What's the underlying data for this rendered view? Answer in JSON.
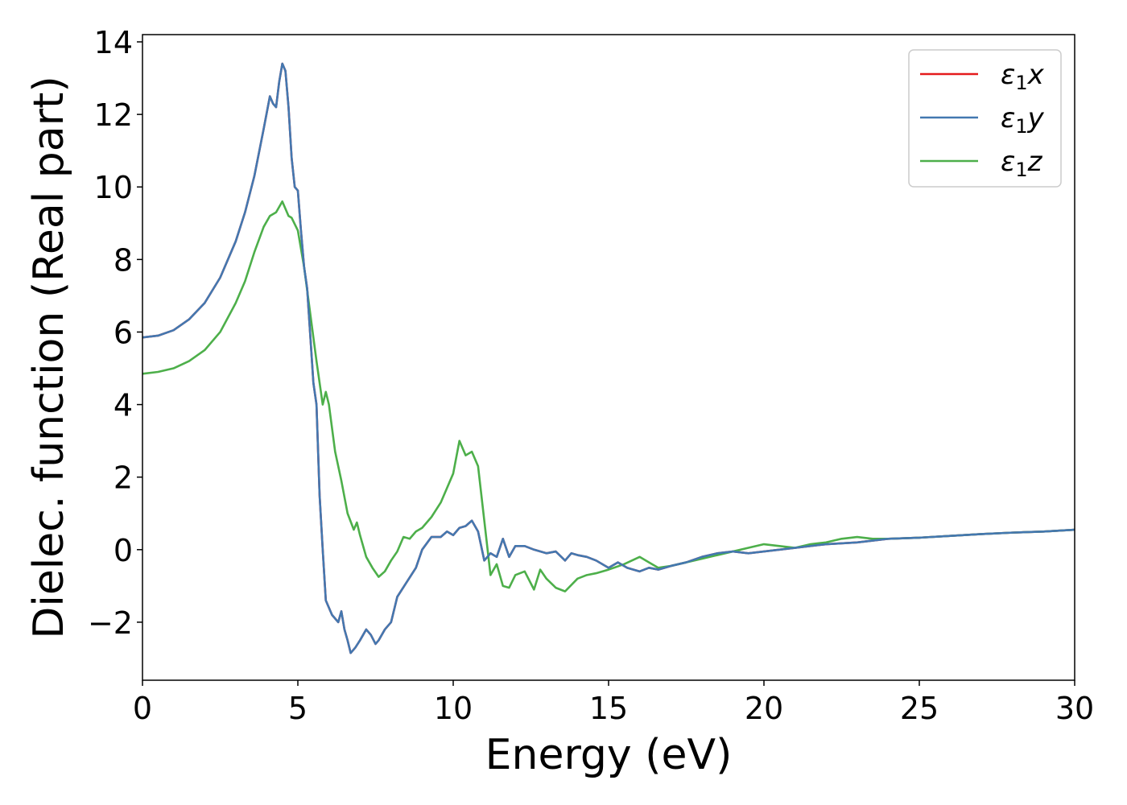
{
  "chart_data": {
    "type": "line",
    "title": "",
    "xlabel": "Energy (eV)",
    "ylabel": "Dielec. function (Real part)",
    "xlim": [
      0,
      30
    ],
    "ylim": [
      -3.6,
      14.2
    ],
    "xticks": [
      0,
      5,
      10,
      15,
      20,
      25,
      30
    ],
    "xtick_labels": [
      "0",
      "5",
      "10",
      "15",
      "20",
      "25",
      "30"
    ],
    "yticks": [
      -2,
      0,
      2,
      4,
      6,
      8,
      10,
      12,
      14
    ],
    "ytick_labels": [
      "−2",
      "0",
      "2",
      "4",
      "6",
      "8",
      "10",
      "12",
      "14"
    ],
    "grid": false,
    "legend_position": "top-right",
    "series": [
      {
        "name": "ε₁x",
        "legend_base": "ε",
        "legend_sub": "1",
        "legend_suffix": "x",
        "color": "#e41a1c",
        "x": [
          0,
          0.5,
          1,
          1.5,
          2,
          2.5,
          3,
          3.3,
          3.6,
          3.9,
          4.1,
          4.2,
          4.3,
          4.4,
          4.5,
          4.6,
          4.7,
          4.8,
          4.9,
          5.0,
          5.1,
          5.2,
          5.3,
          5.4,
          5.5,
          5.6,
          5.7,
          5.8,
          5.9,
          6.0,
          6.1,
          6.2,
          6.3,
          6.4,
          6.5,
          6.6,
          6.7,
          6.85,
          7.0,
          7.2,
          7.35,
          7.5,
          7.6,
          7.8,
          8.0,
          8.2,
          8.5,
          8.8,
          9.0,
          9.3,
          9.6,
          9.8,
          10.0,
          10.2,
          10.4,
          10.6,
          10.8,
          11.0,
          11.2,
          11.4,
          11.6,
          11.8,
          12.0,
          12.3,
          12.6,
          13.0,
          13.3,
          13.6,
          13.8,
          14.0,
          14.3,
          14.6,
          15.0,
          15.3,
          15.6,
          16.0,
          16.3,
          16.6,
          17.0,
          17.5,
          18.0,
          18.5,
          19.0,
          19.5,
          20.0,
          21.0,
          22.0,
          23.0,
          24.0,
          25.0,
          26.0,
          27.0,
          28.0,
          29.0,
          30.0
        ],
        "y": [
          5.85,
          5.9,
          6.05,
          6.35,
          6.8,
          7.5,
          8.5,
          9.3,
          10.3,
          11.6,
          12.5,
          12.3,
          12.2,
          12.9,
          13.4,
          13.2,
          12.2,
          10.8,
          10.0,
          9.9,
          8.8,
          7.8,
          7.2,
          5.9,
          4.6,
          4.0,
          1.5,
          0.0,
          -1.4,
          -1.6,
          -1.8,
          -1.9,
          -2.0,
          -1.7,
          -2.2,
          -2.5,
          -2.85,
          -2.7,
          -2.5,
          -2.2,
          -2.35,
          -2.6,
          -2.5,
          -2.2,
          -2.0,
          -1.3,
          -0.9,
          -0.5,
          0.0,
          0.35,
          0.35,
          0.5,
          0.4,
          0.6,
          0.65,
          0.8,
          0.5,
          -0.3,
          -0.1,
          -0.2,
          0.3,
          -0.2,
          0.1,
          0.1,
          0.0,
          -0.1,
          -0.05,
          -0.3,
          -0.1,
          -0.15,
          -0.2,
          -0.3,
          -0.5,
          -0.35,
          -0.5,
          -0.6,
          -0.5,
          -0.55,
          -0.45,
          -0.35,
          -0.2,
          -0.1,
          -0.05,
          -0.1,
          -0.05,
          0.05,
          0.15,
          0.2,
          0.3,
          0.33,
          0.38,
          0.43,
          0.47,
          0.5,
          0.55
        ]
      },
      {
        "name": "ε₁y",
        "legend_base": "ε",
        "legend_sub": "1",
        "legend_suffix": "y",
        "color": "#4378b0",
        "x": [
          0,
          0.5,
          1,
          1.5,
          2,
          2.5,
          3,
          3.3,
          3.6,
          3.9,
          4.1,
          4.2,
          4.3,
          4.4,
          4.5,
          4.6,
          4.7,
          4.8,
          4.9,
          5.0,
          5.1,
          5.2,
          5.3,
          5.4,
          5.5,
          5.6,
          5.7,
          5.8,
          5.9,
          6.0,
          6.1,
          6.2,
          6.3,
          6.4,
          6.5,
          6.6,
          6.7,
          6.85,
          7.0,
          7.2,
          7.35,
          7.5,
          7.6,
          7.8,
          8.0,
          8.2,
          8.5,
          8.8,
          9.0,
          9.3,
          9.6,
          9.8,
          10.0,
          10.2,
          10.4,
          10.6,
          10.8,
          11.0,
          11.2,
          11.4,
          11.6,
          11.8,
          12.0,
          12.3,
          12.6,
          13.0,
          13.3,
          13.6,
          13.8,
          14.0,
          14.3,
          14.6,
          15.0,
          15.3,
          15.6,
          16.0,
          16.3,
          16.6,
          17.0,
          17.5,
          18.0,
          18.5,
          19.0,
          19.5,
          20.0,
          21.0,
          22.0,
          23.0,
          24.0,
          25.0,
          26.0,
          27.0,
          28.0,
          29.0,
          30.0
        ],
        "y": [
          5.85,
          5.9,
          6.05,
          6.35,
          6.8,
          7.5,
          8.5,
          9.3,
          10.3,
          11.6,
          12.5,
          12.3,
          12.2,
          12.9,
          13.4,
          13.2,
          12.2,
          10.8,
          10.0,
          9.9,
          8.8,
          7.8,
          7.2,
          5.9,
          4.6,
          4.0,
          1.5,
          0.0,
          -1.4,
          -1.6,
          -1.8,
          -1.9,
          -2.0,
          -1.7,
          -2.2,
          -2.5,
          -2.85,
          -2.7,
          -2.5,
          -2.2,
          -2.35,
          -2.6,
          -2.5,
          -2.2,
          -2.0,
          -1.3,
          -0.9,
          -0.5,
          0.0,
          0.35,
          0.35,
          0.5,
          0.4,
          0.6,
          0.65,
          0.8,
          0.5,
          -0.3,
          -0.1,
          -0.2,
          0.3,
          -0.2,
          0.1,
          0.1,
          0.0,
          -0.1,
          -0.05,
          -0.3,
          -0.1,
          -0.15,
          -0.2,
          -0.3,
          -0.5,
          -0.35,
          -0.5,
          -0.6,
          -0.5,
          -0.55,
          -0.45,
          -0.35,
          -0.2,
          -0.1,
          -0.05,
          -0.1,
          -0.05,
          0.05,
          0.15,
          0.2,
          0.3,
          0.33,
          0.38,
          0.43,
          0.47,
          0.5,
          0.55
        ]
      },
      {
        "name": "ε₁z",
        "legend_base": "ε",
        "legend_sub": "1",
        "legend_suffix": "z",
        "color": "#4daf4a",
        "x": [
          0,
          0.5,
          1,
          1.5,
          2,
          2.5,
          3,
          3.3,
          3.6,
          3.9,
          4.1,
          4.3,
          4.5,
          4.6,
          4.7,
          4.8,
          5.0,
          5.2,
          5.4,
          5.6,
          5.8,
          5.9,
          6.0,
          6.2,
          6.4,
          6.6,
          6.8,
          6.9,
          7.0,
          7.2,
          7.4,
          7.6,
          7.8,
          8.0,
          8.2,
          8.4,
          8.6,
          8.8,
          9.0,
          9.3,
          9.6,
          9.8,
          10.0,
          10.2,
          10.4,
          10.6,
          10.8,
          11.0,
          11.2,
          11.4,
          11.6,
          11.8,
          12.0,
          12.3,
          12.6,
          12.8,
          13.0,
          13.3,
          13.6,
          14.0,
          14.3,
          14.6,
          15.0,
          15.5,
          16.0,
          16.3,
          16.6,
          17.0,
          17.5,
          18.0,
          18.5,
          19.0,
          19.5,
          20.0,
          20.5,
          21.0,
          21.5,
          22.0,
          22.5,
          23.0,
          23.5,
          24.0,
          25.0,
          26.0,
          27.0,
          28.0,
          29.0,
          30.0
        ],
        "y": [
          4.85,
          4.9,
          5.0,
          5.2,
          5.5,
          6.0,
          6.8,
          7.4,
          8.2,
          8.9,
          9.2,
          9.3,
          9.6,
          9.4,
          9.2,
          9.15,
          8.8,
          7.8,
          6.5,
          5.2,
          4.0,
          4.35,
          4.0,
          2.7,
          1.9,
          1.0,
          0.55,
          0.75,
          0.4,
          -0.2,
          -0.5,
          -0.75,
          -0.6,
          -0.3,
          -0.05,
          0.35,
          0.3,
          0.5,
          0.6,
          0.9,
          1.3,
          1.7,
          2.1,
          3.0,
          2.6,
          2.7,
          2.3,
          0.8,
          -0.7,
          -0.4,
          -1.0,
          -1.05,
          -0.7,
          -0.6,
          -1.1,
          -0.55,
          -0.8,
          -1.05,
          -1.15,
          -0.8,
          -0.7,
          -0.65,
          -0.55,
          -0.4,
          -0.2,
          -0.35,
          -0.5,
          -0.45,
          -0.35,
          -0.25,
          -0.15,
          -0.05,
          0.05,
          0.15,
          0.1,
          0.05,
          0.15,
          0.2,
          0.3,
          0.35,
          0.3,
          0.3,
          0.33,
          0.38,
          0.43,
          0.47,
          0.5,
          0.55
        ]
      }
    ]
  }
}
